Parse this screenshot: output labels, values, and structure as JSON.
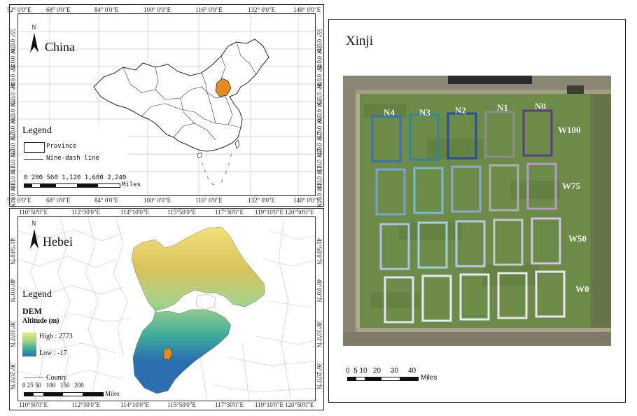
{
  "china_panel": {
    "title": "China",
    "north": "N",
    "top_ticks": [
      "52° 0'0\"E",
      "68° 0'0\"E",
      "84° 0'0\"E",
      "100° 0'0\"E",
      "116° 0'0\"E",
      "132° 0'0\"E",
      "148° 0'0\"E"
    ],
    "bottom_ticks": [
      "52° 0'0\"E",
      "68° 0'0\"E",
      "84° 0'0\"E",
      "100° 0'0\"E",
      "116° 0'0\"E",
      "132° 0'0\"E",
      "148° 0'0\"E"
    ],
    "left_ticks": [
      "55° 0'0\"N",
      "50° 0'0\"N",
      "45° 0'0\"N",
      "40° 0'0\"N",
      "35° 0'0\"N",
      "30° 0'0\"N",
      "25° 0'0\"N",
      "20° 0'0\"N",
      "15° 0'0\"N",
      "10° 0'0\"N"
    ],
    "right_ticks": [
      "55° 0'0\"N",
      "50° 0'0\"N",
      "45° 0'0\"N",
      "40° 0'0\"N",
      "35° 0'0\"N",
      "30° 0'0\"N",
      "25° 0'0\"N",
      "20° 0'0\"N",
      "15° 0'0\"N",
      "10° 0'0\"N"
    ],
    "legend_title": "Legend",
    "legend_items": [
      "Province",
      "Nine-dash line"
    ],
    "scale_numbers": "0  280 560     1,120    1,680    2,240",
    "scale_unit": "Miles",
    "highlight_color": "#e58a1f"
  },
  "hebei_panel": {
    "title": "Hebei",
    "north": "N",
    "top_ticks": [
      "110°50'0\"E",
      "112°30'0\"E",
      "114°10'0\"E",
      "115°50'0\"E",
      "117°30'0\"E",
      "119°10'0\"E",
      "120°50'0\"E"
    ],
    "bottom_ticks": [
      "110°50'0\"E",
      "112°30'0\"E",
      "114°10'0\"E",
      "115°50'0\"E",
      "117°30'0\"E",
      "119°10'0\"E",
      "120°50'0\"E"
    ],
    "left_ticks": [
      "41°50'0\"N",
      "40°0'0\"N",
      "38°10'0\"N",
      "36°20'0\"N"
    ],
    "right_ticks": [
      "41°50'0\"N",
      "40°0'0\"N",
      "38°10'0\"N",
      "36°20'0\"N"
    ],
    "legend_title": "Legend",
    "dem_title": "DEM",
    "altitude_label": "Altitude (m)",
    "high_label": "High : 2773",
    "low_label": "Low : -17",
    "county_label": "County",
    "scale_numbers": "0 25 50   100   150   200",
    "scale_unit": "Miles",
    "ramp_colors": [
      "#f2e17a",
      "#a8d28a",
      "#3fae9a",
      "#2b6fb0"
    ]
  },
  "xinji_panel": {
    "title": "Xinji",
    "n_labels": [
      "N4",
      "N3",
      "N2",
      "N1",
      "N0"
    ],
    "w_labels": [
      "W100",
      "W75",
      "W50",
      "W0"
    ],
    "row_colors": [
      [
        "#3a6fb5",
        "#2f86a0",
        "#2c4c99",
        "#8c8c8c",
        "#5a3d80"
      ],
      [
        "#7aa3d6",
        "#79b9cf",
        "#8fa8cc",
        "#b0b0b0",
        "#b59cc8"
      ],
      [
        "#a8c2e6",
        "#a6d0de",
        "#b8c6e0",
        "#c8c8c8",
        "#d2c4e0"
      ],
      [
        "#dfe6f2",
        "#e0eef3",
        "#e4e8f2",
        "#e8e8e8",
        "#ece4f2"
      ]
    ],
    "scale_numbers": "0  5 10   20     30     40",
    "scale_unit": "Miles"
  }
}
